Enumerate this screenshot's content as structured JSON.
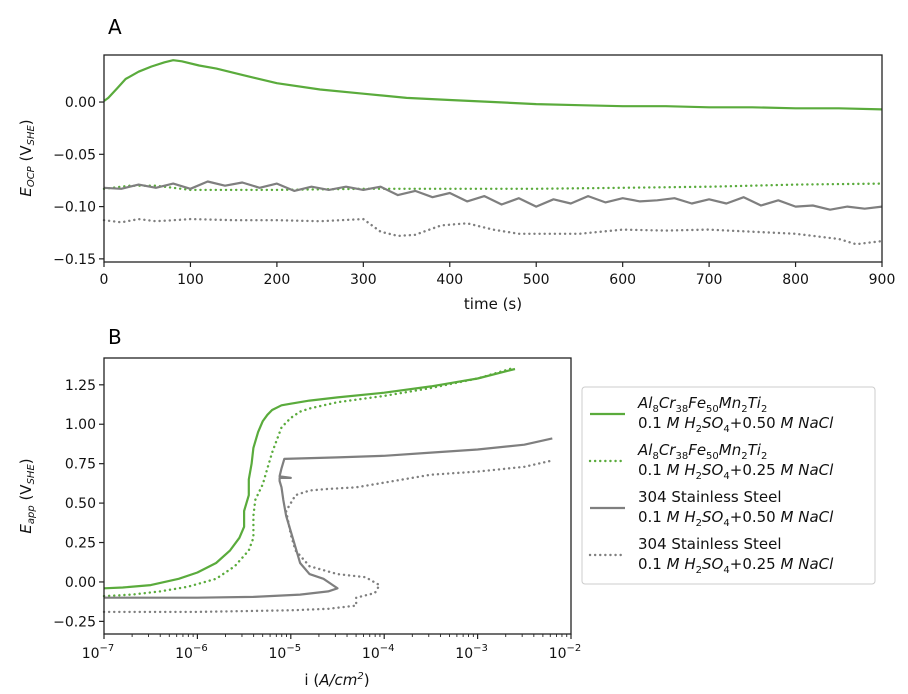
{
  "colors": {
    "green": "#5aab3c",
    "gray": "#7f7f7f",
    "axis": "#222222",
    "legend_border": "#cccccc"
  },
  "chart_data": [
    {
      "panel": "A",
      "type": "line",
      "xlabel": "time (s)",
      "ylabel_main": "E",
      "ylabel_sub": "OCP",
      "ylabel_unit_main": "V",
      "ylabel_unit_sub": "SHE",
      "xlim": [
        0,
        900
      ],
      "ylim": [
        -0.153,
        0.045
      ],
      "xticks": [
        0,
        100,
        200,
        300,
        400,
        500,
        600,
        700,
        800,
        900
      ],
      "xtick_labels": [
        "0",
        "100",
        "200",
        "300",
        "400",
        "500",
        "600",
        "700",
        "800",
        "900"
      ],
      "yticks": [
        0.0,
        -0.05,
        -0.1,
        -0.15
      ],
      "ytick_labels": [
        "0.00",
        "−0.05",
        "−0.10",
        "−0.15"
      ],
      "series": [
        {
          "name": "Al8Cr38Fe50Mn2Ti2 0.1 M H2SO4+0.50 M NaCl",
          "color": "green",
          "style": "solid",
          "x": [
            0,
            5,
            15,
            25,
            40,
            55,
            70,
            80,
            90,
            110,
            130,
            160,
            200,
            250,
            300,
            350,
            400,
            450,
            500,
            550,
            600,
            650,
            700,
            750,
            800,
            850,
            900
          ],
          "y": [
            0.001,
            0.004,
            0.013,
            0.022,
            0.029,
            0.034,
            0.038,
            0.04,
            0.039,
            0.035,
            0.032,
            0.026,
            0.018,
            0.012,
            0.008,
            0.004,
            0.002,
            0.0,
            -0.002,
            -0.003,
            -0.004,
            -0.004,
            -0.005,
            -0.005,
            -0.006,
            -0.006,
            -0.007
          ]
        },
        {
          "name": "Al8Cr38Fe50Mn2Ti2 0.1 M H2SO4+0.25 M NaCl",
          "color": "green",
          "style": "dotted",
          "x": [
            0,
            30,
            60,
            80,
            100,
            200,
            300,
            400,
            500,
            600,
            700,
            800,
            900
          ],
          "y": [
            -0.083,
            -0.08,
            -0.08,
            -0.082,
            -0.084,
            -0.084,
            -0.083,
            -0.083,
            -0.083,
            -0.082,
            -0.081,
            -0.079,
            -0.078
          ]
        },
        {
          "name": "304 Stainless Steel 0.1 M H2SO4+0.50 M NaCl",
          "color": "gray",
          "style": "solid",
          "x": [
            0,
            20,
            40,
            60,
            80,
            100,
            120,
            140,
            160,
            180,
            200,
            220,
            240,
            260,
            280,
            300,
            320,
            340,
            360,
            380,
            400,
            420,
            440,
            460,
            480,
            500,
            520,
            540,
            560,
            580,
            600,
            620,
            640,
            660,
            680,
            700,
            720,
            740,
            760,
            780,
            800,
            820,
            840,
            860,
            880,
            900
          ],
          "y": [
            -0.082,
            -0.083,
            -0.079,
            -0.082,
            -0.078,
            -0.083,
            -0.076,
            -0.08,
            -0.077,
            -0.082,
            -0.078,
            -0.085,
            -0.081,
            -0.084,
            -0.081,
            -0.084,
            -0.081,
            -0.089,
            -0.085,
            -0.091,
            -0.087,
            -0.095,
            -0.09,
            -0.098,
            -0.092,
            -0.1,
            -0.093,
            -0.097,
            -0.09,
            -0.096,
            -0.092,
            -0.095,
            -0.094,
            -0.092,
            -0.097,
            -0.093,
            -0.097,
            -0.091,
            -0.099,
            -0.094,
            -0.1,
            -0.099,
            -0.103,
            -0.1,
            -0.102,
            -0.1
          ]
        },
        {
          "name": "304 Stainless Steel 0.1 M H2SO4+0.25 M NaCl",
          "color": "gray",
          "style": "dotted",
          "x": [
            0,
            20,
            40,
            60,
            80,
            100,
            150,
            200,
            250,
            300,
            320,
            340,
            360,
            390,
            420,
            450,
            480,
            500,
            550,
            600,
            650,
            700,
            750,
            800,
            850,
            870,
            900
          ],
          "y": [
            -0.113,
            -0.115,
            -0.112,
            -0.114,
            -0.113,
            -0.112,
            -0.113,
            -0.113,
            -0.114,
            -0.112,
            -0.124,
            -0.128,
            -0.127,
            -0.118,
            -0.116,
            -0.122,
            -0.126,
            -0.126,
            -0.126,
            -0.122,
            -0.123,
            -0.122,
            -0.124,
            -0.126,
            -0.131,
            -0.136,
            -0.133
          ]
        }
      ]
    },
    {
      "panel": "B",
      "type": "line",
      "xscale": "log",
      "xlabel_main": "i (",
      "xlabel_italic": "A/cm",
      "xlabel_sup": "2",
      "xlabel_end": ")",
      "ylabel_main": "E",
      "ylabel_sub": "app",
      "ylabel_unit_main": "V",
      "ylabel_unit_sub": "SHE",
      "xlim_log10": [
        -7,
        -2
      ],
      "ylim": [
        -0.33,
        1.42
      ],
      "xticks_log10": [
        -7,
        -6,
        -5,
        -4,
        -3,
        -2
      ],
      "xtick_labels": [
        "10",
        "10",
        "10",
        "10",
        "10",
        "10"
      ],
      "xtick_exponents": [
        "−7",
        "−6",
        "−5",
        "−4",
        "−3",
        "−2"
      ],
      "yticks": [
        1.25,
        1.0,
        0.75,
        0.5,
        0.25,
        0.0,
        -0.25
      ],
      "ytick_labels": [
        "1.25",
        "1.00",
        "0.75",
        "0.50",
        "0.25",
        "0.00",
        "−0.25"
      ],
      "series": [
        {
          "name": "Al8Cr38Fe50Mn2Ti2 0.1 M H2SO4+0.50 M NaCl",
          "color": "green",
          "style": "solid",
          "log10_i": [
            -7.0,
            -6.8,
            -6.5,
            -6.2,
            -6.0,
            -5.8,
            -5.65,
            -5.55,
            -5.5,
            -5.5,
            -5.45,
            -5.45,
            -5.42,
            -5.4,
            -5.35,
            -5.3,
            -5.25,
            -5.2,
            -5.1,
            -5.0,
            -4.8,
            -4.5,
            -4.0,
            -3.5,
            -3.0,
            -2.6
          ],
          "E": [
            -0.04,
            -0.035,
            -0.02,
            0.02,
            0.06,
            0.12,
            0.2,
            0.28,
            0.35,
            0.45,
            0.55,
            0.65,
            0.75,
            0.85,
            0.95,
            1.02,
            1.06,
            1.09,
            1.12,
            1.13,
            1.15,
            1.17,
            1.2,
            1.24,
            1.29,
            1.35
          ]
        },
        {
          "name": "Al8Cr38Fe50Mn2Ti2 0.1 M H2SO4+0.25 M NaCl",
          "color": "green",
          "style": "dotted",
          "log10_i": [
            -7.0,
            -6.7,
            -6.4,
            -6.1,
            -5.8,
            -5.6,
            -5.45,
            -5.4,
            -5.4,
            -5.38,
            -5.3,
            -5.25,
            -5.2,
            -5.15,
            -5.1,
            -5.0,
            -4.9,
            -4.8,
            -4.5,
            -4.0,
            -3.5,
            -3.0,
            -2.6
          ],
          "E": [
            -0.09,
            -0.08,
            -0.06,
            -0.03,
            0.02,
            0.1,
            0.2,
            0.28,
            0.42,
            0.52,
            0.62,
            0.72,
            0.82,
            0.9,
            0.98,
            1.04,
            1.08,
            1.1,
            1.14,
            1.18,
            1.23,
            1.29,
            1.36
          ]
        },
        {
          "name": "304 Stainless Steel 0.1 M H2SO4+0.50 M NaCl",
          "color": "gray",
          "style": "solid",
          "log10_i": [
            -7.0,
            -6.0,
            -5.4,
            -4.9,
            -4.6,
            -4.5,
            -4.55,
            -4.65,
            -4.8,
            -4.9,
            -4.95,
            -5.0,
            -5.05,
            -5.08,
            -5.1,
            -5.12,
            -5.12,
            -5.0,
            -5.12,
            -5.1,
            -5.07,
            -4.5,
            -4.0,
            -3.5,
            -3.0,
            -2.5,
            -2.2
          ],
          "E": [
            -0.1,
            -0.1,
            -0.095,
            -0.08,
            -0.06,
            -0.04,
            -0.02,
            0.02,
            0.05,
            0.12,
            0.22,
            0.32,
            0.42,
            0.52,
            0.6,
            0.64,
            0.66,
            0.66,
            0.67,
            0.72,
            0.78,
            0.79,
            0.8,
            0.82,
            0.84,
            0.87,
            0.91
          ]
        },
        {
          "name": "304 Stainless Steel 0.1 M H2SO4+0.25 M NaCl",
          "color": "gray",
          "style": "dotted",
          "log10_i": [
            -7.0,
            -6.0,
            -5.0,
            -4.6,
            -4.3,
            -4.3,
            -4.1,
            -4.05,
            -4.2,
            -4.5,
            -4.8,
            -4.95,
            -5.0,
            -5.05,
            -4.95,
            -4.8,
            -4.6,
            -4.3,
            -4.1,
            -3.5,
            -3.0,
            -2.5,
            -2.2
          ],
          "E": [
            -0.19,
            -0.19,
            -0.18,
            -0.17,
            -0.15,
            -0.1,
            -0.07,
            -0.02,
            0.03,
            0.05,
            0.1,
            0.2,
            0.3,
            0.45,
            0.55,
            0.58,
            0.59,
            0.6,
            0.62,
            0.68,
            0.7,
            0.73,
            0.77
          ]
        }
      ],
      "legend": {
        "placement": "outside-right",
        "entries": [
          {
            "line1": "Al8Cr38Fe50Mn2Ti2",
            "line2": "0.1 M H2SO4+0.50 M NaCl",
            "color": "green",
            "style": "solid"
          },
          {
            "line1": "Al8Cr38Fe50Mn2Ti2",
            "line2": "0.1 M H2SO4+0.25 M NaCl",
            "color": "green",
            "style": "dotted"
          },
          {
            "line1": "304 Stainless Steel",
            "line2": "0.1 M H2SO4+0.50 M NaCl",
            "color": "gray",
            "style": "solid"
          },
          {
            "line1": "304 Stainless Steel",
            "line2": "0.1 M H2SO4+0.25 M NaCl",
            "color": "gray",
            "style": "dotted"
          }
        ]
      }
    }
  ]
}
